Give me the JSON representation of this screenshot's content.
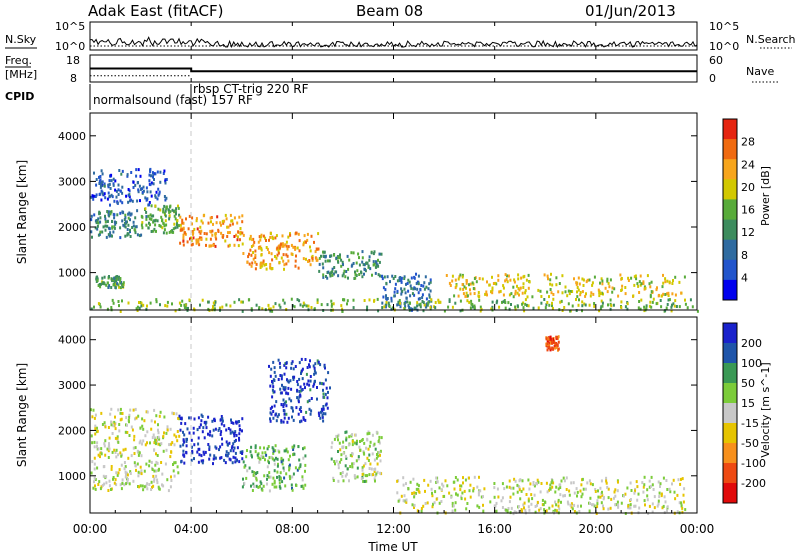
{
  "header": {
    "station": "Adak East (fitACF)",
    "beam": "Beam 08",
    "date": "01/Jun/2013"
  },
  "noise_panel": {
    "left_label": "N.Sky",
    "right_label": "N.Search",
    "left_ticks": [
      "10^5",
      "10^0"
    ],
    "right_ticks": [
      "10^5",
      "10^0"
    ]
  },
  "freq_panel": {
    "left_label_1": "Freq.",
    "left_label_2": "[MHz]",
    "left_ticks": [
      "18",
      "8"
    ],
    "right_label": "Nave",
    "right_ticks": [
      "60",
      "0"
    ],
    "freq_steps": [
      {
        "start_h": 0.0,
        "end_h": 4.0,
        "mhz": 12.5
      },
      {
        "start_h": 4.0,
        "end_h": 24.0,
        "mhz": 11.2
      }
    ],
    "nave_level": 14
  },
  "cpid": {
    "label": "CPID",
    "programs": [
      {
        "text": "normalsound (fast) 157 RF",
        "start_h": 0.0
      },
      {
        "text": "rbsp CT-trig 220 RF",
        "start_h": 4.0
      }
    ]
  },
  "time_axis": {
    "label": "Time UT",
    "ticks": [
      "00:00",
      "04:00",
      "08:00",
      "12:00",
      "16:00",
      "20:00",
      "00:00"
    ]
  },
  "power_panel": {
    "ylabel": "Slant Range [km]",
    "yticks": [
      "1000",
      "2000",
      "3000",
      "4000"
    ],
    "colorbar_label": "Power [dB]",
    "colorbar_ticks": [
      "28",
      "24",
      "20",
      "16",
      "12",
      "8",
      "4"
    ],
    "colors": [
      "#0000ee",
      "#2255cc",
      "#2f6ba0",
      "#3d8c5e",
      "#58ab3a",
      "#d2c800",
      "#f7a51c",
      "#f06a10",
      "#e52410"
    ]
  },
  "velocity_panel": {
    "ylabel": "Slant Range [km]",
    "yticks": [
      "1000",
      "2000",
      "3000",
      "4000"
    ],
    "colorbar_label": "Velocity [m s^-1]",
    "colorbar_ticks": [
      "200",
      "100",
      "50",
      "15",
      "-15",
      "-50",
      "-100",
      "-200"
    ],
    "colors": [
      "#1a22cc",
      "#1f55aa",
      "#3a9955",
      "#7ccc3a",
      "#c8c8c8",
      "#e6c400",
      "#f7901c",
      "#ee4a12",
      "#e10a0a"
    ]
  },
  "chart_data": [
    {
      "type": "heatmap",
      "title": "Power [dB]",
      "xlabel": "Time UT",
      "ylabel": "Slant Range [km]",
      "xlim": [
        0,
        24
      ],
      "ylim": [
        180,
        4500
      ],
      "zlim": [
        0,
        30
      ],
      "zticks": [
        4,
        8,
        12,
        16,
        20,
        24,
        28
      ],
      "regions": [
        {
          "t0": 0.0,
          "t1": 2.0,
          "r0": 1800,
          "r1": 2400,
          "z": 10
        },
        {
          "t0": 0.2,
          "t1": 1.3,
          "r0": 700,
          "r1": 950,
          "z": 13
        },
        {
          "t0": 2.0,
          "t1": 3.5,
          "r0": 1900,
          "r1": 2500,
          "z": 14
        },
        {
          "t0": 3.5,
          "t1": 6.0,
          "r0": 1600,
          "r1": 2300,
          "z": 23
        },
        {
          "t0": 6.0,
          "t1": 9.0,
          "r0": 1100,
          "r1": 1900,
          "z": 22
        },
        {
          "t0": 9.0,
          "t1": 11.5,
          "r0": 900,
          "r1": 1500,
          "z": 12
        },
        {
          "t0": 11.5,
          "t1": 13.5,
          "r0": 200,
          "r1": 1000,
          "z": 8
        },
        {
          "t0": 14.0,
          "t1": 23.5,
          "r0": 500,
          "r1": 1000,
          "z": 19
        },
        {
          "t0": 0.0,
          "t1": 24.0,
          "r0": 180,
          "r1": 450,
          "z": 15
        },
        {
          "t0": 0.0,
          "t1": 3.0,
          "r0": 2500,
          "r1": 3300,
          "z": 6
        }
      ]
    },
    {
      "type": "heatmap",
      "title": "Velocity [m s^-1]",
      "xlabel": "Time UT",
      "ylabel": "Slant Range [km]",
      "xlim": [
        0,
        24
      ],
      "ylim": [
        180,
        4500
      ],
      "zlim": [
        -250,
        250
      ],
      "zticks": [
        200,
        100,
        50,
        15,
        -15,
        -50,
        -100,
        -200
      ],
      "regions": [
        {
          "t0": 0.0,
          "t1": 3.5,
          "r0": 700,
          "r1": 2500,
          "z": 0
        },
        {
          "t0": 3.5,
          "t1": 6.0,
          "r0": 1300,
          "r1": 2400,
          "z": 210
        },
        {
          "t0": 6.0,
          "t1": 8.5,
          "r0": 700,
          "r1": 1700,
          "z": 80
        },
        {
          "t0": 7.0,
          "t1": 9.5,
          "r0": 2200,
          "r1": 3600,
          "z": 200
        },
        {
          "t0": 9.5,
          "t1": 11.5,
          "r0": 900,
          "r1": 2000,
          "z": 30
        },
        {
          "t0": 12.0,
          "t1": 23.5,
          "r0": 200,
          "r1": 1000,
          "z": 5
        },
        {
          "t0": 18.0,
          "t1": 18.5,
          "r0": 3800,
          "r1": 4100,
          "z": -180
        }
      ]
    }
  ]
}
